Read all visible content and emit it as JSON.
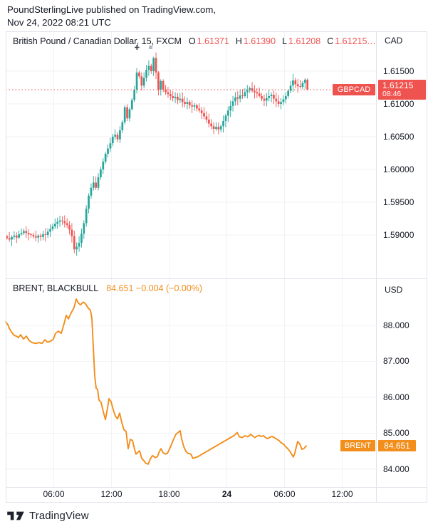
{
  "header": {
    "line1": "PoundSterlingLive published on TradingView.com,",
    "line2": "Nov 24, 2022 08:21 UTC"
  },
  "panel1": {
    "title": "British Pound / Canadian Dollar, 15, FXCM",
    "ohlc": [
      [
        "O",
        "1.61371"
      ],
      [
        "H",
        "1.61390"
      ],
      [
        "L",
        "1.61208"
      ],
      [
        "C",
        "1.61215…"
      ]
    ],
    "currency": "CAD",
    "y_labels": [
      "1.61500",
      "1.61000",
      "1.60500",
      "1.60000",
      "1.59500",
      "1.59000"
    ],
    "price_label": {
      "symbol": "GBPCAD",
      "price": "1.61215",
      "countdown": "08:46"
    }
  },
  "panel2": {
    "title": "BRENT, BLACKBULL",
    "quote": "84.651 −0.004 (−0.00%)",
    "currency": "USD",
    "y_labels": [
      "88.000",
      "87.000",
      "86.000",
      "85.000",
      "84.000"
    ],
    "price_label": {
      "symbol": "BRENT",
      "price": "84.651"
    }
  },
  "time_axis": [
    "06:00",
    "12:00",
    "18:00",
    "24",
    "06:00",
    "12:00"
  ],
  "watermark": "TradingView",
  "colors": {
    "up": "#26a69a",
    "down": "#ef5350",
    "line_orange": "#f28e1c",
    "text": "#131722",
    "grid": "#f0f2f6",
    "border": "#e0e3eb"
  },
  "chart_data": [
    {
      "type": "candlestick",
      "symbol": "GBPCAD",
      "interval": "15",
      "exchange": "FXCM",
      "title": "British Pound / Canadian Dollar, 15, FXCM",
      "ylabel": "CAD",
      "y_ticks": [
        1.615,
        1.61,
        1.605,
        1.6,
        1.595,
        1.59
      ],
      "ylim": [
        1.5833,
        1.621
      ],
      "last": {
        "o": 1.61371,
        "h": 1.6139,
        "l": 1.61208,
        "c": 1.61215
      },
      "current_price": 1.61215,
      "countdown": "08:46",
      "wick_overrides": {
        "28": {
          "l": 1.5872
        },
        "61": {
          "h": 1.6172
        }
      },
      "closes": [
        1.5895,
        1.5893,
        1.5897,
        1.5899,
        1.5896,
        1.5901,
        1.5903,
        1.5906,
        1.5903,
        1.5901,
        1.59,
        1.5898,
        1.5896,
        1.5899,
        1.5897,
        1.5901,
        1.59,
        1.5905,
        1.5909,
        1.5913,
        1.5917,
        1.592,
        1.5922,
        1.5921,
        1.5918,
        1.5915,
        1.5908,
        1.5898,
        1.5878,
        1.5882,
        1.5888,
        1.5902,
        1.5918,
        1.594,
        1.596,
        1.5972,
        1.598,
        1.5972,
        1.5988,
        1.6,
        1.6012,
        1.6024,
        1.6032,
        1.604,
        1.605,
        1.6053,
        1.6046,
        1.606,
        1.6072,
        1.6095,
        1.6078,
        1.6092,
        1.6106,
        1.6122,
        1.6148,
        1.6142,
        1.6128,
        1.614,
        1.6152,
        1.6158,
        1.615,
        1.617,
        1.6148,
        1.6122,
        1.6135,
        1.6122,
        1.6118,
        1.6115,
        1.6112,
        1.6109,
        1.6111,
        1.6106,
        1.6108,
        1.6103,
        1.61,
        1.6103,
        1.6098,
        1.6096,
        1.6098,
        1.6093,
        1.609,
        1.6086,
        1.6081,
        1.6076,
        1.607,
        1.6066,
        1.6062,
        1.6065,
        1.6061,
        1.6066,
        1.6074,
        1.6082,
        1.609,
        1.6097,
        1.6104,
        1.611,
        1.6108,
        1.6113,
        1.6112,
        1.6118,
        1.6121,
        1.6124,
        1.612,
        1.6118,
        1.6116,
        1.6112,
        1.6108,
        1.6105,
        1.6109,
        1.6112,
        1.6114,
        1.6108,
        1.6104,
        1.61,
        1.6103,
        1.6107,
        1.6112,
        1.612,
        1.6128,
        1.6136,
        1.613,
        1.6127,
        1.6126,
        1.6132,
        1.61371,
        1.61215
      ]
    },
    {
      "type": "line",
      "symbol": "BRENT",
      "title": "BRENT, BLACKBULL",
      "ylabel": "USD",
      "y_ticks": [
        88,
        87,
        86,
        85,
        84
      ],
      "ylim": [
        83.5,
        89.3
      ],
      "last": 84.651,
      "change": "−0.004",
      "change_pct": "−0.00%",
      "points": [
        [
          8,
          88.1
        ],
        [
          11,
          88.02
        ],
        [
          13,
          87.92
        ],
        [
          16,
          87.82
        ],
        [
          20,
          87.72
        ],
        [
          23,
          87.7
        ],
        [
          26,
          87.66
        ],
        [
          29,
          87.74
        ],
        [
          33,
          87.62
        ],
        [
          37,
          87.7
        ],
        [
          41,
          87.58
        ],
        [
          45,
          87.52
        ],
        [
          50,
          87.5
        ],
        [
          55,
          87.52
        ],
        [
          59,
          87.5
        ],
        [
          63,
          87.6
        ],
        [
          67,
          87.53
        ],
        [
          71,
          87.56
        ],
        [
          75,
          87.62
        ],
        [
          78,
          87.78
        ],
        [
          82,
          87.84
        ],
        [
          86,
          87.78
        ],
        [
          90,
          88.05
        ],
        [
          93,
          88.28
        ],
        [
          96,
          88.18
        ],
        [
          100,
          88.35
        ],
        [
          104,
          88.5
        ],
        [
          107,
          88.73
        ],
        [
          110,
          88.62
        ],
        [
          113,
          88.57
        ],
        [
          117,
          88.65
        ],
        [
          120,
          88.6
        ],
        [
          124,
          88.48
        ],
        [
          127,
          88.42
        ],
        [
          129,
          88.2
        ],
        [
          131,
          87.4
        ],
        [
          133,
          86.6
        ],
        [
          135,
          86.25
        ],
        [
          137,
          86.22
        ],
        [
          139,
          85.92
        ],
        [
          142,
          85.86
        ],
        [
          145,
          85.6
        ],
        [
          148,
          85.38
        ],
        [
          151,
          85.7
        ],
        [
          153,
          85.96
        ],
        [
          156,
          85.88
        ],
        [
          159,
          85.65
        ],
        [
          162,
          85.48
        ],
        [
          165,
          85.4
        ],
        [
          168,
          85.56
        ],
        [
          171,
          85.3
        ],
        [
          174,
          85.1
        ],
        [
          177,
          85.05
        ],
        [
          180,
          84.57
        ],
        [
          183,
          84.83
        ],
        [
          186,
          84.8
        ],
        [
          189,
          84.55
        ],
        [
          191,
          84.42
        ],
        [
          194,
          84.48
        ],
        [
          196,
          84.51
        ],
        [
          199,
          84.3
        ],
        [
          202,
          84.24
        ],
        [
          205,
          84.16
        ],
        [
          208,
          84.14
        ],
        [
          211,
          84.28
        ],
        [
          214,
          84.38
        ],
        [
          218,
          84.32
        ],
        [
          221,
          84.35
        ],
        [
          224,
          84.5
        ],
        [
          226,
          84.57
        ],
        [
          229,
          84.46
        ],
        [
          232,
          84.42
        ],
        [
          235,
          84.44
        ],
        [
          239,
          84.6
        ],
        [
          243,
          84.8
        ],
        [
          247,
          84.97
        ],
        [
          250,
          85.02
        ],
        [
          253,
          85.07
        ],
        [
          255,
          84.85
        ],
        [
          258,
          84.63
        ],
        [
          261,
          84.5
        ],
        [
          264,
          84.44
        ],
        [
          268,
          84.42
        ],
        [
          271,
          84.3
        ],
        [
          274,
          84.32
        ],
        [
          278,
          84.35
        ],
        [
          329,
          84.94
        ],
        [
          333,
          85.02
        ],
        [
          336,
          84.9
        ],
        [
          340,
          84.88
        ],
        [
          344,
          84.93
        ],
        [
          348,
          84.9
        ],
        [
          352,
          84.97
        ],
        [
          355,
          84.92
        ],
        [
          358,
          84.88
        ],
        [
          361,
          84.92
        ],
        [
          364,
          84.94
        ],
        [
          367,
          84.91
        ],
        [
          370,
          84.93
        ],
        [
          373,
          84.88
        ],
        [
          376,
          84.85
        ],
        [
          379,
          84.89
        ],
        [
          382,
          84.91
        ],
        [
          385,
          84.88
        ],
        [
          389,
          84.83
        ],
        [
          392,
          84.79
        ],
        [
          395,
          84.73
        ],
        [
          398,
          84.7
        ],
        [
          401,
          84.63
        ],
        [
          404,
          84.57
        ],
        [
          407,
          84.5
        ],
        [
          410,
          84.4
        ],
        [
          412,
          84.34
        ],
        [
          414,
          84.45
        ],
        [
          416,
          84.62
        ],
        [
          418,
          84.77
        ],
        [
          421,
          84.7
        ],
        [
          424,
          84.55
        ],
        [
          427,
          84.58
        ],
        [
          430,
          84.65
        ]
      ]
    }
  ]
}
